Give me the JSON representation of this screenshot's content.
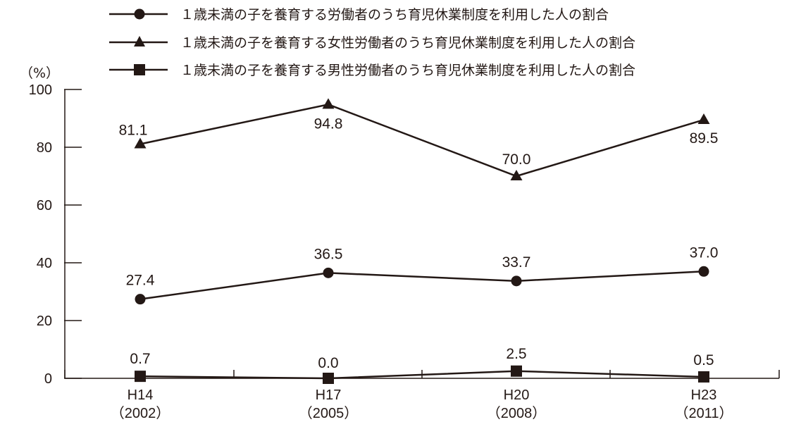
{
  "chart_data": {
    "type": "line",
    "unit_label": "（%）",
    "ylim": [
      0,
      100
    ],
    "yticks": [
      "0",
      "20",
      "40",
      "60",
      "80",
      "100"
    ],
    "categories": [
      {
        "top": "H14",
        "bottom": "（2002）"
      },
      {
        "top": "H17",
        "bottom": "（2005）"
      },
      {
        "top": "H20",
        "bottom": "（2008）"
      },
      {
        "top": "H23",
        "bottom": "（2011）"
      }
    ],
    "legend_position": "top",
    "grid": false,
    "line_color": "#231815",
    "series": [
      {
        "name": "１歳未満の子を養育する労働者のうち育児休業制度を利用した人の割合",
        "marker": "circle",
        "values": [
          27.4,
          36.5,
          33.7,
          37.0
        ],
        "labels": [
          "27.4",
          "36.5",
          "33.7",
          "37.0"
        ]
      },
      {
        "name": "１歳未満の子を養育する女性労働者のうち育児休業制度を利用した人の割合",
        "marker": "triangle",
        "values": [
          81.1,
          94.8,
          70.0,
          89.5
        ],
        "labels": [
          "81.1",
          "94.8",
          "70.0",
          "89.5"
        ]
      },
      {
        "name": "１歳未満の子を養育する男性労働者のうち育児休業制度を利用した人の割合",
        "marker": "square",
        "values": [
          0.7,
          0.0,
          2.5,
          0.5
        ],
        "labels": [
          "0.7",
          "0.0",
          "2.5",
          "0.5"
        ]
      }
    ]
  }
}
